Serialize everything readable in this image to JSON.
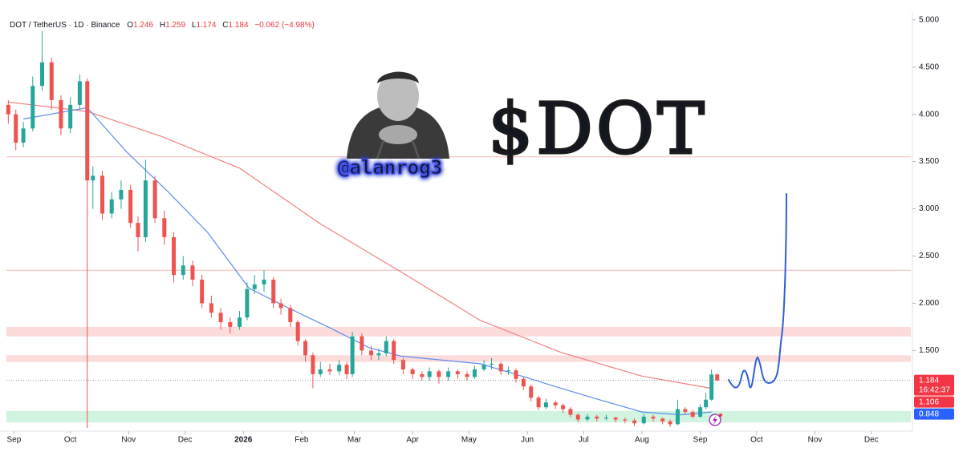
{
  "chart_data": {
    "type": "candlestick",
    "header": {
      "symbol": "DOT / TetherUS · 1D · Binance",
      "ohlc": [
        {
          "label": "O",
          "value": 1.246
        },
        {
          "label": "H",
          "value": 1.259
        },
        {
          "label": "L",
          "value": 1.174
        },
        {
          "label": "C",
          "value": 1.184
        }
      ],
      "change": "−0.062 (−4.98%)"
    },
    "title": "$DOT",
    "annotation": "@alanrog3",
    "up_color": "#26a69a",
    "down_color": "#ef5350",
    "xlim": [
      -4,
      477
    ],
    "xticks": [
      {
        "value": 0,
        "label": "Sep"
      },
      {
        "value": 30,
        "label": "Oct"
      },
      {
        "value": 61,
        "label": "Nov"
      },
      {
        "value": 91,
        "label": "Dec"
      },
      {
        "value": 122,
        "label": "2026"
      },
      {
        "value": 153,
        "label": "Feb"
      },
      {
        "value": 181,
        "label": "Mar"
      },
      {
        "value": 212,
        "label": "Apr"
      },
      {
        "value": 242,
        "label": "May"
      },
      {
        "value": 273,
        "label": "Jun"
      },
      {
        "value": 303,
        "label": "Jul"
      },
      {
        "value": 334,
        "label": "Aug"
      },
      {
        "value": 365,
        "label": "Sep"
      },
      {
        "value": 395,
        "label": "Oct"
      },
      {
        "value": 426,
        "label": "Nov"
      },
      {
        "value": 456,
        "label": "Dec"
      }
    ],
    "ylim": [
      0.63,
      5.04
    ],
    "yticks": [
      {
        "value": 5,
        "label": "5.000"
      },
      {
        "value": 4.5,
        "label": "4.500"
      },
      {
        "value": 4,
        "label": "4.000"
      },
      {
        "value": 3.5,
        "label": "3.500"
      },
      {
        "value": 3,
        "label": "3.000"
      },
      {
        "value": 2.5,
        "label": "2.500"
      },
      {
        "value": 2,
        "label": "2.000"
      },
      {
        "value": 1.5,
        "label": "1.500"
      }
    ],
    "grid": false,
    "zones": [
      {
        "from": 1.65,
        "to": 1.75,
        "color": "#fbd5d5"
      },
      {
        "from": 1.38,
        "to": 1.45,
        "color": "#fbd5d5"
      },
      {
        "from": 0.74,
        "to": 0.86,
        "color": "#c9f2dc"
      }
    ],
    "hlines": [
      {
        "value": 3.55,
        "color": "#f7b5b5"
      },
      {
        "value": 2.35,
        "color": "#f7b5b5"
      }
    ],
    "candles": {
      "x": [
        -3,
        1,
        5,
        10,
        15,
        20,
        25,
        30,
        35,
        39,
        42,
        47,
        52,
        57,
        62,
        66,
        70,
        75,
        80,
        85,
        90,
        95,
        100,
        105,
        110,
        115,
        120,
        124,
        128,
        133,
        138,
        142,
        147,
        151,
        155,
        159,
        163,
        168,
        173,
        177,
        180,
        185,
        190,
        194,
        198,
        202,
        207,
        212,
        217,
        221,
        226,
        231,
        236,
        241,
        245,
        250,
        254,
        259,
        263,
        267,
        271,
        275,
        279,
        283,
        288,
        292,
        296,
        300,
        305,
        310,
        315,
        320,
        325,
        330,
        335,
        340,
        345,
        349,
        353,
        357,
        361,
        365,
        368,
        371,
        374
      ],
      "open": [
        4.1,
        4.0,
        3.7,
        3.85,
        4.3,
        4.55,
        4.15,
        3.85,
        4.1,
        4.35,
        3.3,
        3.35,
        2.95,
        3.1,
        3.2,
        2.85,
        2.7,
        3.3,
        2.9,
        2.7,
        2.3,
        2.4,
        2.25,
        2.0,
        1.9,
        1.8,
        1.75,
        1.85,
        2.15,
        2.2,
        2.25,
        2.0,
        1.95,
        1.8,
        1.6,
        1.45,
        1.25,
        1.3,
        1.28,
        1.35,
        1.25,
        1.65,
        1.5,
        1.45,
        1.47,
        1.6,
        1.4,
        1.3,
        1.25,
        1.22,
        1.28,
        1.22,
        1.28,
        1.25,
        1.22,
        1.3,
        1.35,
        1.36,
        1.28,
        1.29,
        1.2,
        1.12,
        1.0,
        0.9,
        0.95,
        0.92,
        0.88,
        0.82,
        0.77,
        0.8,
        0.78,
        0.79,
        0.77,
        0.76,
        0.73,
        0.8,
        0.78,
        0.75,
        0.72,
        0.88,
        0.85,
        0.8,
        0.9,
        0.98,
        1.246
      ],
      "high": [
        4.15,
        4.05,
        3.92,
        4.4,
        4.88,
        4.6,
        4.2,
        4.18,
        4.42,
        4.38,
        3.45,
        3.4,
        3.18,
        3.3,
        3.25,
        2.92,
        3.52,
        3.35,
        2.98,
        2.75,
        2.5,
        2.45,
        2.3,
        2.08,
        1.95,
        1.85,
        1.92,
        2.22,
        2.3,
        2.35,
        2.28,
        2.05,
        1.98,
        1.82,
        1.62,
        1.48,
        1.38,
        1.36,
        1.4,
        1.38,
        1.7,
        1.68,
        1.55,
        1.52,
        1.65,
        1.62,
        1.42,
        1.32,
        1.28,
        1.32,
        1.3,
        1.32,
        1.3,
        1.28,
        1.34,
        1.4,
        1.42,
        1.38,
        1.33,
        1.31,
        1.22,
        1.14,
        1.02,
        0.99,
        0.97,
        0.94,
        0.9,
        0.84,
        0.83,
        0.82,
        0.82,
        0.8,
        0.79,
        0.78,
        0.83,
        0.82,
        0.79,
        0.77,
        0.98,
        0.9,
        0.87,
        0.93,
        1.05,
        1.3,
        1.259
      ],
      "low": [
        3.9,
        3.62,
        3.65,
        3.82,
        4.25,
        4.05,
        3.78,
        3.8,
        4.05,
        0.68,
        3.0,
        2.88,
        2.9,
        3.0,
        2.8,
        2.55,
        2.65,
        2.85,
        2.62,
        2.22,
        2.25,
        2.18,
        1.95,
        1.85,
        1.72,
        1.68,
        1.72,
        1.82,
        2.1,
        2.12,
        1.95,
        1.88,
        1.75,
        1.55,
        1.38,
        1.1,
        1.22,
        1.24,
        1.24,
        1.2,
        1.22,
        1.45,
        1.4,
        1.4,
        1.44,
        1.36,
        1.25,
        1.2,
        1.18,
        1.18,
        1.15,
        1.18,
        1.2,
        1.18,
        1.2,
        1.28,
        1.3,
        1.24,
        1.24,
        1.16,
        1.08,
        0.96,
        0.87,
        0.88,
        0.88,
        0.84,
        0.79,
        0.74,
        0.75,
        0.75,
        0.76,
        0.74,
        0.73,
        0.7,
        0.72,
        0.75,
        0.72,
        0.69,
        0.71,
        0.82,
        0.78,
        0.79,
        0.88,
        0.97,
        1.174
      ],
      "close": [
        4.0,
        3.7,
        3.85,
        4.3,
        4.55,
        4.15,
        3.85,
        4.1,
        4.35,
        3.3,
        3.35,
        2.95,
        3.1,
        3.2,
        2.85,
        2.7,
        3.3,
        2.9,
        2.7,
        2.3,
        2.4,
        2.25,
        2.0,
        1.9,
        1.8,
        1.75,
        1.85,
        2.15,
        2.2,
        2.25,
        2.0,
        1.95,
        1.8,
        1.6,
        1.45,
        1.25,
        1.3,
        1.28,
        1.35,
        1.25,
        1.65,
        1.5,
        1.45,
        1.47,
        1.6,
        1.4,
        1.3,
        1.25,
        1.22,
        1.28,
        1.22,
        1.28,
        1.25,
        1.22,
        1.3,
        1.35,
        1.36,
        1.28,
        1.29,
        1.2,
        1.12,
        1.0,
        0.9,
        0.95,
        0.92,
        0.88,
        0.82,
        0.77,
        0.8,
        0.78,
        0.79,
        0.77,
        0.76,
        0.73,
        0.8,
        0.78,
        0.75,
        0.72,
        0.88,
        0.85,
        0.8,
        0.9,
        0.98,
        1.246,
        1.184
      ]
    },
    "lines": [
      {
        "color": "#f07f82",
        "x": [
          -3,
          39,
          78,
          120,
          163,
          206,
          248,
          291,
          334,
          371
        ],
        "values": [
          4.13,
          4.03,
          3.77,
          3.43,
          2.84,
          2.33,
          1.82,
          1.48,
          1.23,
          1.1
        ]
      },
      {
        "color": "#5b8def",
        "x": [
          5,
          39,
          60,
          82,
          103,
          125,
          146,
          168,
          189,
          206,
          248,
          270,
          291,
          313,
          334,
          355,
          371
        ],
        "values": [
          3.95,
          4.07,
          3.6,
          3.18,
          2.75,
          2.16,
          1.95,
          1.74,
          1.53,
          1.44,
          1.36,
          1.23,
          1.1,
          0.97,
          0.85,
          0.82,
          0.85
        ]
      }
    ],
    "price_labels": [
      {
        "value": 1.184,
        "color": "#f23645",
        "countdown": "16:42:37"
      },
      {
        "value": 1.106,
        "color": "#f23645"
      },
      {
        "value": 0.848,
        "color": "#2962ff"
      }
    ]
  }
}
